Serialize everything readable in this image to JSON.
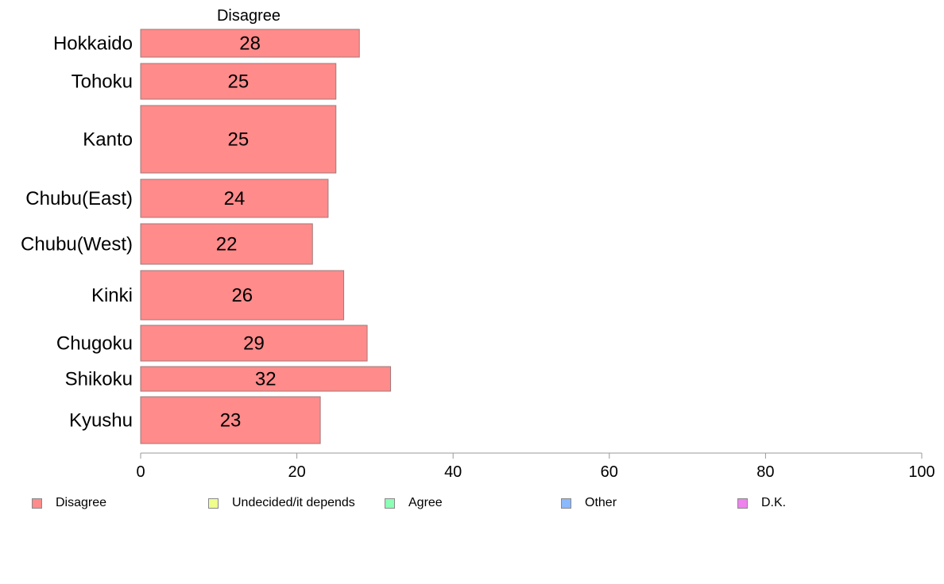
{
  "chart_data": {
    "type": "bar",
    "orientation": "horizontal",
    "title": "Disagree",
    "categories": [
      "Hokkaido",
      "Tohoku",
      "Kanto",
      "Chubu(East)",
      "Chubu(West)",
      "Kinki",
      "Chugoku",
      "Shikoku",
      "Kyushu"
    ],
    "series": [
      {
        "name": "Disagree",
        "values": [
          28,
          25,
          25,
          24,
          22,
          26,
          29,
          32,
          23
        ]
      }
    ],
    "value_labels": [
      "28",
      "25",
      "25",
      "24",
      "22",
      "26",
      "29",
      "32",
      "23"
    ],
    "xlim": [
      0,
      100
    ],
    "x_ticks": [
      0,
      20,
      40,
      60,
      80,
      100
    ],
    "x_tick_labels": [
      "0",
      "20",
      "40",
      "60",
      "80",
      "100"
    ],
    "grid": false,
    "legend_position": "bottom",
    "legend": [
      {
        "label": "Disagree",
        "color": "#ff8b8b"
      },
      {
        "label": "Undecided/it depends",
        "color": "#efff8b"
      },
      {
        "label": "Agree",
        "color": "#8bffb4"
      },
      {
        "label": "Other",
        "color": "#8bb8ff"
      },
      {
        "label": "D.K.",
        "color": "#ee82ee"
      }
    ],
    "bar_color": "#ff8b8b",
    "bar_border_color": "#9e7a7a"
  }
}
